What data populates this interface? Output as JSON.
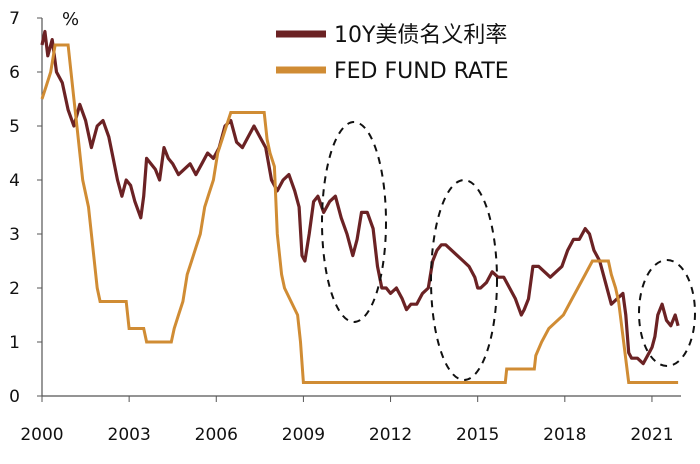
{
  "chart_data": {
    "type": "line",
    "ylabel": "%",
    "ylim": [
      0,
      7
    ],
    "y_ticks": [
      "0",
      "1",
      "2",
      "3",
      "4",
      "5",
      "6",
      "7"
    ],
    "xlim": [
      2000,
      2022
    ],
    "x_ticks": [
      "2000",
      "2003",
      "2006",
      "2009",
      "2012",
      "2015",
      "2018",
      "2021"
    ],
    "grid": false,
    "legend_position": "top-right",
    "series": [
      {
        "name": "10Y美债名义利率",
        "color": "#6b2224",
        "x": [
          2000.0,
          2000.1,
          2000.2,
          2000.35,
          2000.5,
          2000.7,
          2000.9,
          2001.1,
          2001.3,
          2001.5,
          2001.7,
          2001.9,
          2002.1,
          2002.3,
          2002.45,
          2002.6,
          2002.75,
          2002.9,
          2003.05,
          2003.2,
          2003.4,
          2003.5,
          2003.6,
          2003.75,
          2003.9,
          2004.05,
          2004.2,
          2004.35,
          2004.5,
          2004.7,
          2004.9,
          2005.1,
          2005.3,
          2005.5,
          2005.7,
          2005.9,
          2006.1,
          2006.3,
          2006.5,
          2006.7,
          2006.9,
          2007.1,
          2007.3,
          2007.5,
          2007.7,
          2007.9,
          2008.1,
          2008.3,
          2008.5,
          2008.7,
          2008.85,
          2008.95,
          2009.05,
          2009.2,
          2009.35,
          2009.5,
          2009.7,
          2009.9,
          2010.1,
          2010.3,
          2010.5,
          2010.7,
          2010.85,
          2011.0,
          2011.2,
          2011.4,
          2011.55,
          2011.7,
          2011.85,
          2012.0,
          2012.2,
          2012.4,
          2012.55,
          2012.7,
          2012.9,
          2013.1,
          2013.3,
          2013.45,
          2013.6,
          2013.75,
          2013.9,
          2014.1,
          2014.3,
          2014.5,
          2014.7,
          2014.9,
          2015.0,
          2015.1,
          2015.3,
          2015.5,
          2015.7,
          2015.9,
          2016.1,
          2016.3,
          2016.5,
          2016.6,
          2016.75,
          2016.9,
          2017.1,
          2017.3,
          2017.5,
          2017.7,
          2017.9,
          2018.1,
          2018.3,
          2018.5,
          2018.7,
          2018.85,
          2019.0,
          2019.2,
          2019.4,
          2019.6,
          2019.8,
          2020.0,
          2020.1,
          2020.2,
          2020.3,
          2020.5,
          2020.7,
          2020.9,
          2021.0,
          2021.1,
          2021.2,
          2021.35,
          2021.5,
          2021.65,
          2021.8,
          2021.9
        ],
        "values": [
          6.5,
          6.75,
          6.3,
          6.6,
          6.0,
          5.8,
          5.3,
          5.0,
          5.4,
          5.1,
          4.6,
          5.0,
          5.1,
          4.8,
          4.4,
          4.0,
          3.7,
          4.0,
          3.9,
          3.6,
          3.3,
          3.7,
          4.4,
          4.3,
          4.2,
          4.0,
          4.6,
          4.4,
          4.3,
          4.1,
          4.2,
          4.3,
          4.1,
          4.3,
          4.5,
          4.4,
          4.6,
          5.0,
          5.1,
          4.7,
          4.6,
          4.8,
          5.0,
          4.8,
          4.6,
          4.0,
          3.8,
          4.0,
          4.1,
          3.8,
          3.5,
          2.6,
          2.5,
          3.0,
          3.6,
          3.7,
          3.4,
          3.6,
          3.7,
          3.3,
          3.0,
          2.6,
          2.9,
          3.4,
          3.4,
          3.1,
          2.4,
          2.0,
          2.0,
          1.9,
          2.0,
          1.8,
          1.6,
          1.7,
          1.7,
          1.9,
          2.0,
          2.5,
          2.7,
          2.8,
          2.8,
          2.7,
          2.6,
          2.5,
          2.4,
          2.2,
          2.0,
          2.0,
          2.1,
          2.3,
          2.2,
          2.2,
          2.0,
          1.8,
          1.5,
          1.6,
          1.8,
          2.4,
          2.4,
          2.3,
          2.2,
          2.3,
          2.4,
          2.7,
          2.9,
          2.9,
          3.1,
          3.0,
          2.7,
          2.5,
          2.1,
          1.7,
          1.8,
          1.9,
          1.5,
          0.8,
          0.7,
          0.7,
          0.6,
          0.8,
          0.9,
          1.1,
          1.5,
          1.7,
          1.4,
          1.3,
          1.5,
          1.3
        ]
      },
      {
        "name": "FED FUND RATE",
        "color": "#d08c34",
        "x": [
          2000.0,
          2000.15,
          2000.3,
          2000.45,
          2000.9,
          2001.0,
          2001.1,
          2001.2,
          2001.3,
          2001.4,
          2001.5,
          2001.6,
          2001.7,
          2001.8,
          2001.9,
          2002.0,
          2002.9,
          2003.0,
          2003.5,
          2003.6,
          2004.45,
          2004.55,
          2004.7,
          2004.85,
          2005.0,
          2005.15,
          2005.3,
          2005.45,
          2005.6,
          2005.75,
          2005.9,
          2006.05,
          2006.2,
          2006.35,
          2006.5,
          2007.65,
          2007.75,
          2007.85,
          2008.0,
          2008.1,
          2008.25,
          2008.35,
          2008.8,
          2008.9,
          2009.0,
          2015.95,
          2016.0,
          2016.95,
          2017.0,
          2017.2,
          2017.45,
          2017.95,
          2018.2,
          2018.45,
          2018.7,
          2018.95,
          2019.5,
          2019.6,
          2019.75,
          2019.85,
          2020.2,
          2020.25,
          2021.9
        ],
        "values": [
          5.5,
          5.75,
          6.0,
          6.5,
          6.5,
          6.0,
          5.5,
          5.0,
          4.5,
          4.0,
          3.75,
          3.5,
          3.0,
          2.5,
          2.0,
          1.75,
          1.75,
          1.25,
          1.25,
          1.0,
          1.0,
          1.25,
          1.5,
          1.75,
          2.25,
          2.5,
          2.75,
          3.0,
          3.5,
          3.75,
          4.0,
          4.5,
          4.75,
          5.0,
          5.25,
          5.25,
          4.75,
          4.5,
          4.25,
          3.0,
          2.25,
          2.0,
          1.5,
          1.0,
          0.25,
          0.25,
          0.5,
          0.5,
          0.75,
          1.0,
          1.25,
          1.5,
          1.75,
          2.0,
          2.25,
          2.5,
          2.5,
          2.25,
          2.0,
          1.75,
          0.25,
          0.25,
          0.25
        ]
      }
    ]
  }
}
